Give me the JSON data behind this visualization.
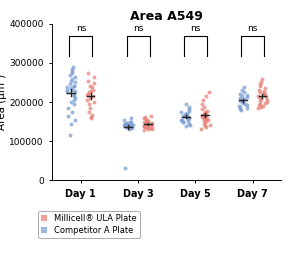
{
  "title": "Area A549",
  "ylabel": "Area (μm²)",
  "xlabels": [
    "Day 1",
    "Day 3",
    "Day 5",
    "Day 7"
  ],
  "ylim": [
    0,
    400000
  ],
  "yticks": [
    0,
    100000,
    200000,
    300000,
    400000
  ],
  "blue_color": "#7B9FD4",
  "red_color": "#E8837A",
  "legend_red": "#F4A09A",
  "legend_blue": "#9BB8E0",
  "blue_day1": [
    280000,
    290000,
    275000,
    285000,
    270000,
    260000,
    255000,
    265000,
    250000,
    245000,
    240000,
    235000,
    230000,
    228000,
    232000,
    225000,
    238000,
    242000,
    220000,
    215000,
    210000,
    205000,
    200000,
    195000,
    185000,
    175000,
    165000,
    155000,
    145000,
    115000
  ],
  "red_day1": [
    275000,
    265000,
    255000,
    248000,
    242000,
    238000,
    232000,
    228000,
    225000,
    220000,
    218000,
    215000,
    210000,
    205000,
    200000,
    195000,
    185000,
    175000,
    168000,
    162000,
    158000
  ],
  "blue_day3": [
    158000,
    153000,
    150000,
    148000,
    147000,
    146000,
    145000,
    144000,
    143000,
    142000,
    141000,
    140000,
    140000,
    139000,
    138000,
    137000,
    136000,
    135000,
    134000,
    133000,
    132000,
    30000
  ],
  "red_day3": [
    165000,
    162000,
    158000,
    155000,
    153000,
    152000,
    150000,
    149000,
    148000,
    147000,
    146000,
    145000,
    144000,
    143000,
    142000,
    141000,
    140000,
    139000,
    138000,
    137000,
    136000,
    135000,
    134000,
    133000,
    132000,
    130000,
    128000
  ],
  "blue_day5": [
    195000,
    188000,
    182000,
    178000,
    175000,
    172000,
    170000,
    168000,
    166000,
    165000,
    163000,
    162000,
    160000,
    158000,
    157000,
    155000,
    153000,
    152000,
    150000,
    148000,
    145000,
    142000,
    138000
  ],
  "red_day5": [
    225000,
    215000,
    205000,
    195000,
    188000,
    182000,
    178000,
    175000,
    172000,
    170000,
    168000,
    166000,
    165000,
    163000,
    162000,
    160000,
    158000,
    157000,
    155000,
    153000,
    150000,
    148000,
    145000,
    142000,
    138000,
    135000,
    132000
  ],
  "blue_day7": [
    238000,
    230000,
    225000,
    220000,
    218000,
    215000,
    213000,
    210000,
    208000,
    205000,
    203000,
    200000,
    198000,
    195000,
    192000,
    190000,
    188000,
    185000,
    182000,
    180000
  ],
  "red_day7": [
    260000,
    252000,
    245000,
    240000,
    235000,
    230000,
    228000,
    225000,
    222000,
    220000,
    218000,
    215000,
    212000,
    210000,
    208000,
    205000,
    202000,
    200000,
    198000,
    195000,
    192000,
    190000,
    188000,
    185000
  ]
}
